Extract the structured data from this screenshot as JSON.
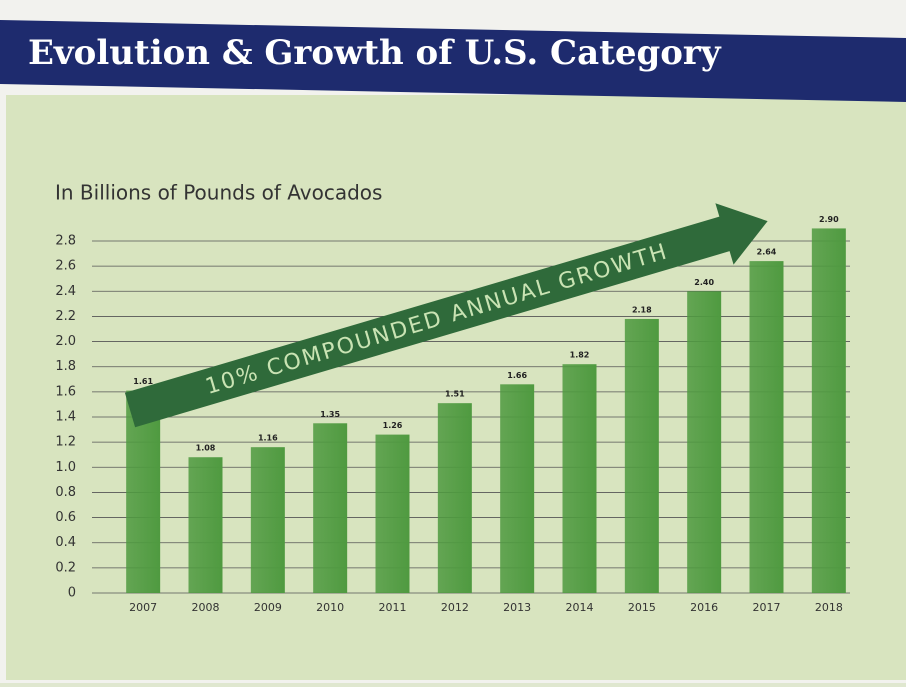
{
  "chart_data": {
    "type": "bar",
    "title": "Evolution & Growth of U.S. Category",
    "subtitle": "In Billions of Pounds of Avocados",
    "annotation": "10% COMPOUNDED ANNUAL GROWTH",
    "categories": [
      "2007",
      "2008",
      "2009",
      "2010",
      "2011",
      "2012",
      "2013",
      "2014",
      "2015",
      "2016",
      "2017",
      "2018"
    ],
    "values": [
      1.61,
      1.08,
      1.16,
      1.35,
      1.26,
      1.51,
      1.66,
      1.82,
      2.18,
      2.4,
      2.64,
      2.9
    ],
    "value_labels": [
      "1.61",
      "1.08",
      "1.16",
      "1.35",
      "1.26",
      "1.51",
      "1.66",
      "1.82",
      "2.18",
      "2.40",
      "2.64",
      "2.90"
    ],
    "color": "#4f9a40",
    "ylim": [
      0,
      3
    ],
    "yticks": [
      0,
      0.2,
      0.4,
      0.6,
      0.8,
      {
        "value": 1,
        "label": "1.0"
      },
      1.2,
      1.4,
      1.6,
      1.8,
      {
        "value": 2,
        "label": "2.0"
      },
      2.2,
      2.4,
      2.6,
      2.8
    ],
    "grid": true
  }
}
